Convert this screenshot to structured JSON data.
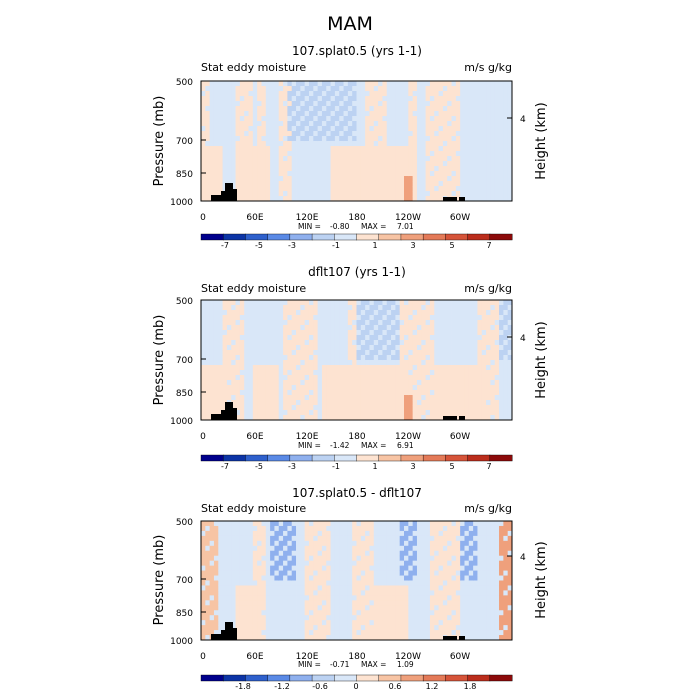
{
  "figure": {
    "title": "MAM"
  },
  "colors": {
    "shading_main": [
      "#00008c",
      "#0c34a6",
      "#2e60cc",
      "#5a8ae6",
      "#8fb0ee",
      "#bcd2f2",
      "#d9e7f8",
      "#fde3d1",
      "#f7c4a4",
      "#efa07c",
      "#e47a58",
      "#d65439",
      "#bb2d1c",
      "#8c0a0a"
    ],
    "land": "#000000"
  },
  "chart_data": [
    {
      "type": "heatmap",
      "title": "107.splat0.5 (yrs 1-1)",
      "left_label": "Stat eddy moisture",
      "right_label": "m/s g/kg",
      "ylabel": "Pressure (mb)",
      "y2label": "Height (km)",
      "y_ticks": [
        "500",
        "700",
        "850",
        "1000"
      ],
      "y2_ticks": [
        "4"
      ],
      "x_ticks": [
        "0",
        "60E",
        "120E",
        "180",
        "120W",
        "60W"
      ],
      "stats": {
        "min_label": "MIN =",
        "min": "-0.80",
        "max_label": "MAX =",
        "max": "7.01"
      },
      "colorbar": {
        "labels": [
          "-7",
          "-5",
          "-3",
          "-1",
          "1",
          "3",
          "5",
          "7"
        ]
      },
      "pattern": {
        "base": 6,
        "warm_bands": [
          [
            0,
            10,
            7
          ],
          [
            42,
            60,
            7
          ],
          [
            63,
            75,
            7
          ],
          [
            90,
            105,
            7
          ],
          [
            190,
            215,
            7
          ],
          [
            238,
            250,
            7
          ],
          [
            262,
            300,
            7
          ]
        ],
        "lowlevel_warm": [
          [
            0,
            25,
            7
          ],
          [
            40,
            80,
            7
          ],
          [
            150,
            250,
            7
          ]
        ],
        "upper_cool": [
          [
            100,
            180,
            5
          ]
        ],
        "hotspot": [
          [
            240,
            9
          ]
        ]
      }
    },
    {
      "type": "heatmap",
      "title": "dflt107 (yrs 1-1)",
      "left_label": "Stat eddy moisture",
      "right_label": "m/s g/kg",
      "ylabel": "Pressure (mb)",
      "y2label": "Height (km)",
      "y_ticks": [
        "500",
        "700",
        "850",
        "1000"
      ],
      "y2_ticks": [
        "4"
      ],
      "x_ticks": [
        "0",
        "60E",
        "120E",
        "180",
        "120W",
        "60W"
      ],
      "stats": {
        "min_label": "MIN =",
        "min": "-1.42",
        "max_label": "MAX =",
        "max": "6.91"
      },
      "colorbar": {
        "labels": [
          "-7",
          "-5",
          "-3",
          "-1",
          "1",
          "3",
          "5",
          "7"
        ]
      },
      "pattern": {
        "base": 6,
        "warm_bands": [
          [
            25,
            50,
            7
          ],
          [
            95,
            135,
            7
          ],
          [
            170,
            180,
            7
          ],
          [
            230,
            270,
            7
          ],
          [
            320,
            345,
            7
          ]
        ],
        "lowlevel_warm": [
          [
            0,
            30,
            7
          ],
          [
            60,
            90,
            7
          ],
          [
            140,
            240,
            7
          ],
          [
            270,
            330,
            7
          ]
        ],
        "upper_cool": [
          [
            180,
            230,
            5
          ],
          [
            345,
            360,
            5
          ]
        ],
        "hotspot": [
          [
            240,
            9
          ]
        ]
      }
    },
    {
      "type": "heatmap",
      "title": "107.splat0.5 - dflt107",
      "left_label": "Stat eddy moisture",
      "right_label": "m/s g/kg",
      "ylabel": "Pressure (mb)",
      "y2label": "Height (km)",
      "y_ticks": [
        "500",
        "700",
        "850",
        "1000"
      ],
      "y2_ticks": [
        "4"
      ],
      "x_ticks": [
        "0",
        "60E",
        "120E",
        "180",
        "120W",
        "60W"
      ],
      "stats": {
        "min_label": "MIN =",
        "min": "-0.71",
        "max_label": "MAX =",
        "max": "1.09"
      },
      "colorbar": {
        "labels": [
          "-1.8",
          "-1.2",
          "-0.6",
          "0",
          "0.6",
          "1.2",
          "1.8"
        ]
      },
      "pattern": {
        "base": 6,
        "warm_bands": [
          [
            0,
            20,
            8
          ],
          [
            60,
            75,
            7
          ],
          [
            120,
            150,
            7
          ],
          [
            175,
            200,
            7
          ],
          [
            265,
            300,
            7
          ],
          [
            345,
            360,
            9
          ]
        ],
        "lowlevel_warm": [
          [
            40,
            70,
            7
          ],
          [
            200,
            240,
            7
          ]
        ],
        "upper_cool": [
          [
            80,
            110,
            4
          ],
          [
            230,
            250,
            4
          ],
          [
            300,
            320,
            4
          ]
        ],
        "hotspot": []
      }
    }
  ]
}
